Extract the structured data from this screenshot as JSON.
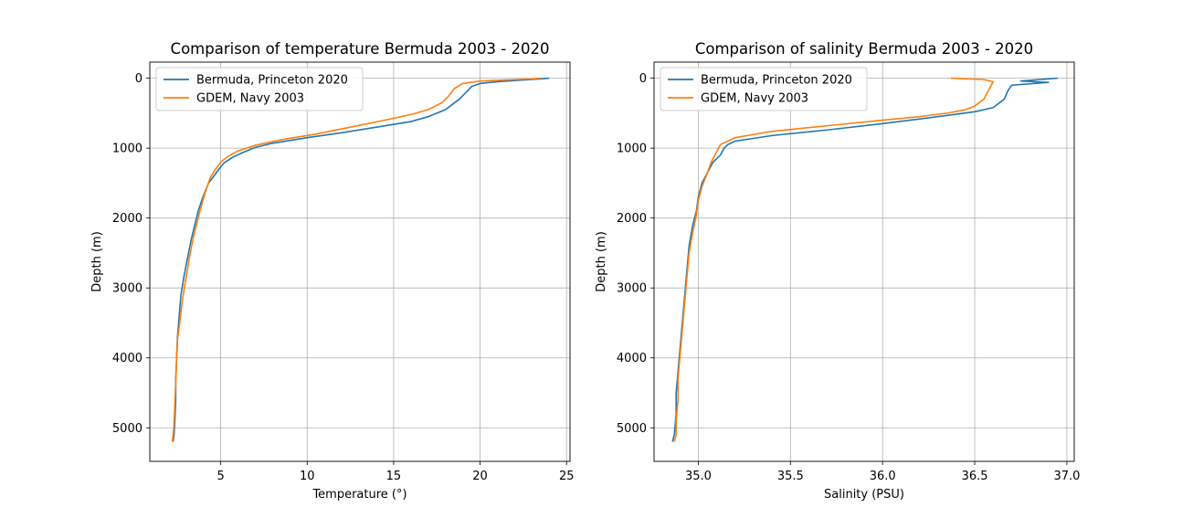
{
  "colors": {
    "series1": "#1f77b4",
    "series2": "#ff7f0e",
    "grid": "#b0b0b0"
  },
  "chart_data": [
    {
      "type": "line",
      "title": "Comparison of temperature Bermuda 2003 - 2020",
      "xlabel": "Temperature (°)",
      "ylabel": "Depth (m)",
      "xlim": [
        0.9,
        25.2
      ],
      "ylim": [
        5480,
        -230
      ],
      "y_inverted": true,
      "grid": true,
      "legend_position": "upper left",
      "xticks": [
        5,
        10,
        15,
        20,
        25
      ],
      "yticks": [
        0,
        1000,
        2000,
        3000,
        4000,
        5000
      ],
      "series": [
        {
          "name": "Bermuda, Princeton 2020",
          "x": [
            24.0,
            23.5,
            22.5,
            21.0,
            20.0,
            19.5,
            19.2,
            18.8,
            18.0,
            17.0,
            16.0,
            14.0,
            12.0,
            10.0,
            8.0,
            7.0,
            6.3,
            5.7,
            5.2,
            4.9,
            4.6,
            4.3,
            4.1,
            3.9,
            3.7,
            3.5,
            3.3,
            3.1,
            2.9,
            2.7,
            2.6,
            2.5,
            2.45,
            2.4,
            2.4,
            2.35,
            2.3,
            2.25
          ],
          "y": [
            0,
            10,
            25,
            50,
            75,
            120,
            200,
            300,
            450,
            550,
            620,
            700,
            780,
            850,
            930,
            990,
            1060,
            1130,
            1210,
            1300,
            1400,
            1500,
            1620,
            1750,
            1900,
            2100,
            2300,
            2550,
            2800,
            3100,
            3400,
            3700,
            4000,
            4300,
            4600,
            4900,
            5100,
            5200
          ]
        },
        {
          "name": "GDEM, Navy 2003",
          "x": [
            23.5,
            23.0,
            22.0,
            20.0,
            19.0,
            18.5,
            18.2,
            17.8,
            17.0,
            16.0,
            14.5,
            12.5,
            10.5,
            8.5,
            7.0,
            6.0,
            5.4,
            5.0,
            4.7,
            4.4,
            4.2,
            4.0,
            3.8,
            3.6,
            3.4,
            3.2,
            3.0,
            2.8,
            2.65,
            2.5,
            2.45,
            2.4,
            2.35,
            2.3,
            2.25,
            2.2
          ],
          "y": [
            0,
            10,
            20,
            40,
            75,
            150,
            250,
            350,
            450,
            520,
            600,
            700,
            800,
            880,
            960,
            1040,
            1120,
            1200,
            1300,
            1420,
            1560,
            1720,
            1900,
            2100,
            2300,
            2550,
            2850,
            3150,
            3450,
            3750,
            4050,
            4350,
            4650,
            4950,
            5100,
            5200
          ]
        }
      ]
    },
    {
      "type": "line",
      "title": "Comparison of salinity Bermuda 2003 - 2020",
      "xlabel": "Salinity (PSU)",
      "ylabel": "Depth (m)",
      "xlim": [
        34.76,
        37.04
      ],
      "ylim": [
        5480,
        -230
      ],
      "y_inverted": true,
      "grid": true,
      "legend_position": "upper left",
      "xticks": [
        "35.0",
        "35.5",
        "36.0",
        "36.5",
        "37.0"
      ],
      "yticks": [
        0,
        1000,
        2000,
        3000,
        4000,
        5000
      ],
      "series": [
        {
          "name": "Bermuda, Princeton 2020",
          "x": [
            36.95,
            36.85,
            36.75,
            36.9,
            36.7,
            36.68,
            36.66,
            36.6,
            36.5,
            36.3,
            36.0,
            35.7,
            35.4,
            35.2,
            35.16,
            35.14,
            35.12,
            35.08,
            35.05,
            35.02,
            35.0,
            34.99,
            34.97,
            34.95,
            34.94,
            34.93,
            34.92,
            34.91,
            34.9,
            34.89,
            34.88,
            34.88,
            34.87,
            34.86
          ],
          "y": [
            0,
            20,
            40,
            60,
            100,
            180,
            300,
            420,
            480,
            550,
            650,
            740,
            820,
            900,
            950,
            1000,
            1100,
            1200,
            1350,
            1500,
            1700,
            1900,
            2100,
            2400,
            2700,
            3000,
            3300,
            3600,
            3900,
            4200,
            4500,
            4800,
            5100,
            5200
          ]
        },
        {
          "name": "GDEM, Navy 2003",
          "x": [
            36.37,
            36.55,
            36.6,
            36.58,
            36.55,
            36.5,
            36.45,
            36.35,
            36.2,
            36.0,
            35.7,
            35.4,
            35.2,
            35.12,
            35.1,
            35.07,
            35.05,
            35.02,
            35.0,
            34.99,
            34.97,
            34.95,
            34.94,
            34.93,
            34.92,
            34.91,
            34.9,
            34.89,
            34.89,
            34.88,
            34.88,
            34.87
          ],
          "y": [
            0,
            20,
            50,
            150,
            300,
            400,
            450,
            500,
            550,
            600,
            680,
            760,
            850,
            950,
            1050,
            1200,
            1350,
            1550,
            1750,
            1950,
            2200,
            2500,
            2800,
            3100,
            3400,
            3700,
            4000,
            4300,
            4600,
            4900,
            5100,
            5200
          ]
        }
      ]
    }
  ]
}
